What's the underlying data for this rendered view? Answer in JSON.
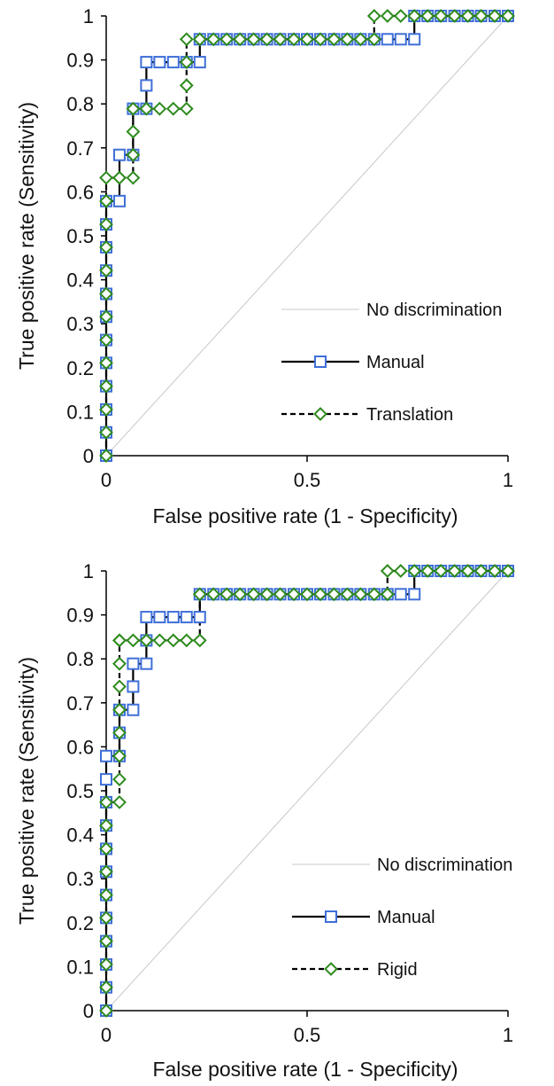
{
  "chart_data": [
    {
      "type": "line",
      "xlabel": "False positive rate (1 - Specificity)",
      "ylabel": "True positive rate (Sensitivity)",
      "xlim": [
        0,
        1
      ],
      "ylim": [
        0,
        1
      ],
      "x_ticks": [
        "0",
        "0.5",
        "1"
      ],
      "y_ticks": [
        "0",
        "0.1",
        "0.2",
        "0.3",
        "0.4",
        "0.5",
        "0.6",
        "0.7",
        "0.8",
        "0.9",
        "1"
      ],
      "grid": false,
      "legend_position": "center-right",
      "series": [
        {
          "name": "No discrimination",
          "style": "thin-gray-line",
          "color": "#c8c8c8",
          "x": [
            0,
            1
          ],
          "y": [
            0,
            1
          ]
        },
        {
          "name": "Manual",
          "style": "solid-line-square-markers",
          "color": "#000000",
          "marker_color": "#3f6fd8",
          "x": [
            0,
            0,
            0,
            0,
            0,
            0,
            0,
            0,
            0,
            0,
            0,
            0,
            0.033,
            0.033,
            0.067,
            0.067,
            0.1,
            0.1,
            0.1,
            0.133,
            0.167,
            0.2,
            0.233,
            0.233,
            0.267,
            0.3,
            0.333,
            0.367,
            0.4,
            0.433,
            0.467,
            0.5,
            0.533,
            0.567,
            0.6,
            0.633,
            0.667,
            0.7,
            0.733,
            0.767,
            0.767,
            0.8,
            0.833,
            0.867,
            0.9,
            0.933,
            0.967,
            1.0
          ],
          "y": [
            0,
            0.053,
            0.105,
            0.158,
            0.211,
            0.263,
            0.316,
            0.368,
            0.421,
            0.474,
            0.526,
            0.579,
            0.579,
            0.684,
            0.684,
            0.789,
            0.789,
            0.842,
            0.895,
            0.895,
            0.895,
            0.895,
            0.895,
            0.947,
            0.947,
            0.947,
            0.947,
            0.947,
            0.947,
            0.947,
            0.947,
            0.947,
            0.947,
            0.947,
            0.947,
            0.947,
            0.947,
            0.947,
            0.947,
            0.947,
            1.0,
            1.0,
            1.0,
            1.0,
            1.0,
            1.0,
            1.0,
            1.0
          ]
        },
        {
          "name": "Translation",
          "style": "dashed-line-diamond-markers",
          "color": "#000000",
          "marker_color": "#2e8b1e",
          "x": [
            0,
            0,
            0,
            0,
            0,
            0,
            0,
            0,
            0,
            0,
            0,
            0,
            0,
            0.033,
            0.033,
            0.067,
            0.067,
            0.067,
            0.067,
            0.1,
            0.133,
            0.167,
            0.2,
            0.2,
            0.2,
            0.2,
            0.233,
            0.267,
            0.3,
            0.333,
            0.367,
            0.4,
            0.433,
            0.467,
            0.5,
            0.533,
            0.567,
            0.6,
            0.633,
            0.667,
            0.667,
            0.7,
            0.733,
            0.767,
            0.8,
            0.833,
            0.867,
            0.9,
            0.933,
            0.967,
            1.0
          ],
          "y": [
            0,
            0.053,
            0.105,
            0.158,
            0.211,
            0.263,
            0.316,
            0.368,
            0.421,
            0.474,
            0.526,
            0.579,
            0.632,
            0.632,
            0.632,
            0.632,
            0.684,
            0.737,
            0.789,
            0.789,
            0.789,
            0.789,
            0.789,
            0.842,
            0.895,
            0.947,
            0.947,
            0.947,
            0.947,
            0.947,
            0.947,
            0.947,
            0.947,
            0.947,
            0.947,
            0.947,
            0.947,
            0.947,
            0.947,
            0.947,
            1.0,
            1.0,
            1.0,
            1.0,
            1.0,
            1.0,
            1.0,
            1.0,
            1.0,
            1.0,
            1.0
          ]
        }
      ]
    },
    {
      "type": "line",
      "xlabel": "False positive rate (1 - Specificity)",
      "ylabel": "True positive rate (Sensitivity)",
      "xlim": [
        0,
        1
      ],
      "ylim": [
        0,
        1
      ],
      "x_ticks": [
        "0",
        "0.5",
        "1"
      ],
      "y_ticks": [
        "0",
        "0.1",
        "0.2",
        "0.3",
        "0.4",
        "0.5",
        "0.6",
        "0.7",
        "0.8",
        "0.9",
        "1"
      ],
      "grid": false,
      "legend_position": "center-right",
      "series": [
        {
          "name": "No discrimination",
          "style": "thin-gray-line",
          "color": "#c8c8c8",
          "x": [
            0,
            1
          ],
          "y": [
            0,
            1
          ]
        },
        {
          "name": "Manual",
          "style": "solid-line-square-markers",
          "color": "#000000",
          "marker_color": "#3f6fd8",
          "x": [
            0,
            0,
            0,
            0,
            0,
            0,
            0,
            0,
            0,
            0,
            0,
            0,
            0.033,
            0.033,
            0.033,
            0.067,
            0.067,
            0.067,
            0.1,
            0.1,
            0.1,
            0.133,
            0.167,
            0.2,
            0.233,
            0.233,
            0.267,
            0.3,
            0.333,
            0.367,
            0.4,
            0.433,
            0.467,
            0.5,
            0.533,
            0.567,
            0.6,
            0.633,
            0.667,
            0.7,
            0.733,
            0.767,
            0.767,
            0.8,
            0.833,
            0.867,
            0.9,
            0.933,
            0.967,
            1.0
          ],
          "y": [
            0,
            0.053,
            0.105,
            0.158,
            0.211,
            0.263,
            0.316,
            0.368,
            0.421,
            0.474,
            0.526,
            0.579,
            0.579,
            0.632,
            0.684,
            0.684,
            0.737,
            0.789,
            0.789,
            0.842,
            0.895,
            0.895,
            0.895,
            0.895,
            0.895,
            0.947,
            0.947,
            0.947,
            0.947,
            0.947,
            0.947,
            0.947,
            0.947,
            0.947,
            0.947,
            0.947,
            0.947,
            0.947,
            0.947,
            0.947,
            0.947,
            0.947,
            1.0,
            1.0,
            1.0,
            1.0,
            1.0,
            1.0,
            1.0,
            1.0
          ]
        },
        {
          "name": "Rigid",
          "style": "dashed-line-diamond-markers",
          "color": "#000000",
          "marker_color": "#2e8b1e",
          "x": [
            0,
            0,
            0,
            0,
            0,
            0,
            0,
            0,
            0,
            0,
            0.033,
            0.033,
            0.033,
            0.033,
            0.033,
            0.033,
            0.033,
            0.033,
            0.033,
            0.067,
            0.1,
            0.133,
            0.167,
            0.2,
            0.233,
            0.233,
            0.267,
            0.3,
            0.333,
            0.367,
            0.4,
            0.433,
            0.467,
            0.5,
            0.533,
            0.567,
            0.6,
            0.633,
            0.667,
            0.7,
            0.7,
            0.733,
            0.767,
            0.8,
            0.833,
            0.867,
            0.9,
            0.933,
            0.967,
            1.0
          ],
          "y": [
            0,
            0.053,
            0.105,
            0.158,
            0.211,
            0.263,
            0.316,
            0.368,
            0.421,
            0.474,
            0.474,
            0.526,
            0.579,
            0.632,
            0.684,
            0.737,
            0.789,
            0.842,
            0.842,
            0.842,
            0.842,
            0.842,
            0.842,
            0.842,
            0.842,
            0.947,
            0.947,
            0.947,
            0.947,
            0.947,
            0.947,
            0.947,
            0.947,
            0.947,
            0.947,
            0.947,
            0.947,
            0.947,
            0.947,
            0.947,
            1.0,
            1.0,
            1.0,
            1.0,
            1.0,
            1.0,
            1.0,
            1.0,
            1.0,
            1.0
          ]
        }
      ]
    }
  ]
}
